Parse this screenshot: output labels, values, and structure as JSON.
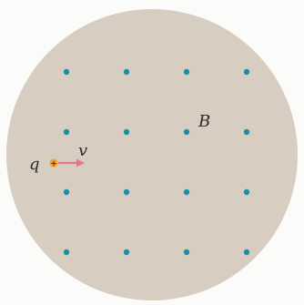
{
  "diagram": {
    "field_label": "B",
    "charge_label": "q",
    "charge_sign": "+",
    "velocity_label": "v",
    "field_direction": "out-of-page",
    "field_grid": {
      "rows": 4,
      "cols": 4
    },
    "colors": {
      "region": "#d8cdc1",
      "field_dot": "#1b8fa6",
      "velocity_arrow": "#e07890",
      "charge": "#f0a23a"
    }
  }
}
